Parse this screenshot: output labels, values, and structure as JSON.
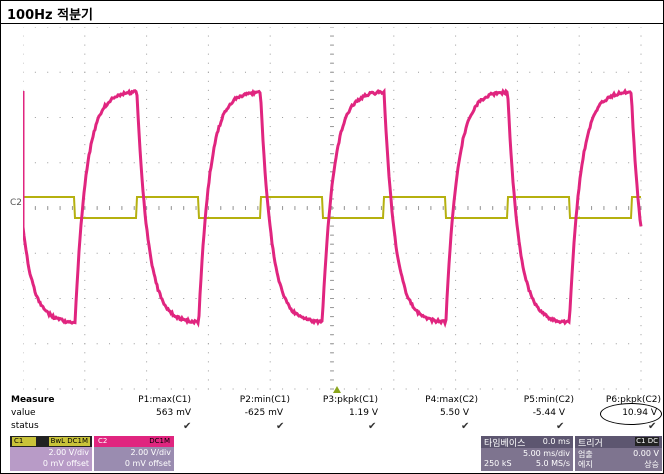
{
  "title": "100Hz 적분기",
  "channel_marker": "C2",
  "measure": {
    "header_label": "Measure",
    "value_label": "value",
    "status_label": "status",
    "columns": [
      {
        "name": "P1:max(C1)",
        "value": "563 mV"
      },
      {
        "name": "P2:min(C1)",
        "value": "-625 mV"
      },
      {
        "name": "P3:pkpk(C1)",
        "value": "1.19 V"
      },
      {
        "name": "P4:max(C2)",
        "value": "5.50 V"
      },
      {
        "name": "P5:min(C2)",
        "value": "-5.44 V"
      },
      {
        "name": "P6:pkpk(C2)",
        "value": "10.94 V"
      }
    ],
    "check_glyph": "✔"
  },
  "c1": {
    "tag": "C1",
    "bw": "BwL DC1M",
    "vdiv": "2.00 V/div",
    "offset": "0 mV offset"
  },
  "c2": {
    "tag": "C2",
    "bw": "DC1M",
    "vdiv": "2.00 V/div",
    "offset": "0 mV offset"
  },
  "timebase": {
    "title": "타임베이스",
    "delay": "0.0 ms",
    "tdiv": "5.00 ms/div",
    "samples": "250 kS",
    "rate": "5.0 MS/s"
  },
  "trigger": {
    "title": "트리거",
    "tags": "C1 DC",
    "mode": "엄출",
    "level": "0.00 V",
    "type_label": "에지",
    "slope": "상승"
  },
  "colors": {
    "c1": "#b5b00f",
    "c2": "#e0257f",
    "grid": "#9a9a9a"
  }
}
